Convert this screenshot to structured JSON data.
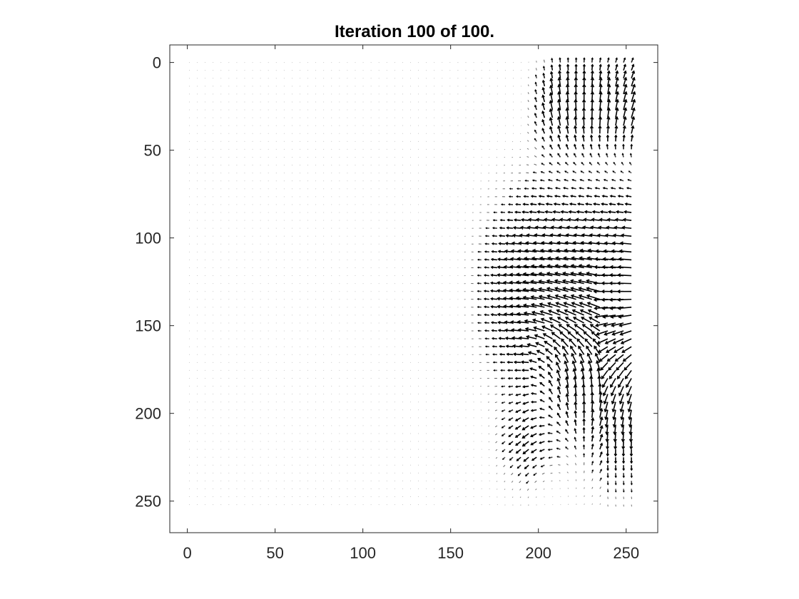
{
  "chart_data": {
    "type": "quiver",
    "title": "Iteration 100 of 100.",
    "xlabel": "",
    "ylabel": "",
    "xlim": [
      -10,
      268
    ],
    "ylim": [
      -10,
      268
    ],
    "y_reversed": true,
    "aspect": "equal",
    "grid": false,
    "xticks": [
      0,
      50,
      100,
      150,
      200,
      250
    ],
    "yticks": [
      0,
      50,
      100,
      150,
      200,
      250
    ],
    "grid_points": {
      "x_start": 1,
      "x_end": 253,
      "x_step": 4.5,
      "y_start": 0,
      "y_end": 253,
      "y_step": 4.5
    },
    "vector_field": {
      "description_of_flow": "arrows are nearly zero on the left half; strong leftward flow rows 50-190 for x > 150, swirling upward/rightward near x ~ 200-250",
      "max_arrow_length": 10,
      "arrow_color": "#000000"
    }
  }
}
